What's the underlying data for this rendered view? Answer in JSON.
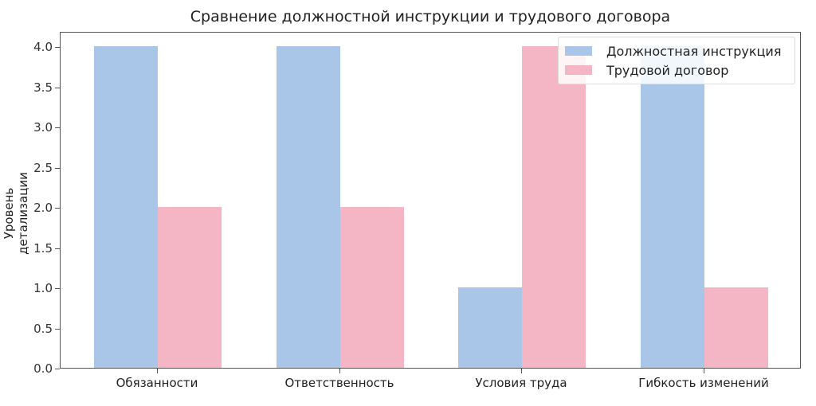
{
  "chart_data": {
    "type": "bar",
    "title": "Сравнение должностной инструкции и трудового договора",
    "xlabel": "",
    "ylabel": "Уровень детализации",
    "categories": [
      "Обязанности",
      "Ответственность",
      "Условия труда",
      "Гибкость изменений"
    ],
    "series": [
      {
        "name": "Должностная инструкция",
        "values": [
          4,
          4,
          1,
          4
        ],
        "color": "#a9c6e8"
      },
      {
        "name": "Трудовой договор",
        "values": [
          2,
          2,
          4,
          1
        ],
        "color": "#f4b6c4"
      }
    ],
    "ylim": [
      0,
      4.2
    ],
    "yticks": [
      "0.0",
      "0.5",
      "1.0",
      "1.5",
      "2.0",
      "2.5",
      "3.0",
      "3.5",
      "4.0"
    ],
    "grid": false,
    "legend_position": "upper right"
  }
}
